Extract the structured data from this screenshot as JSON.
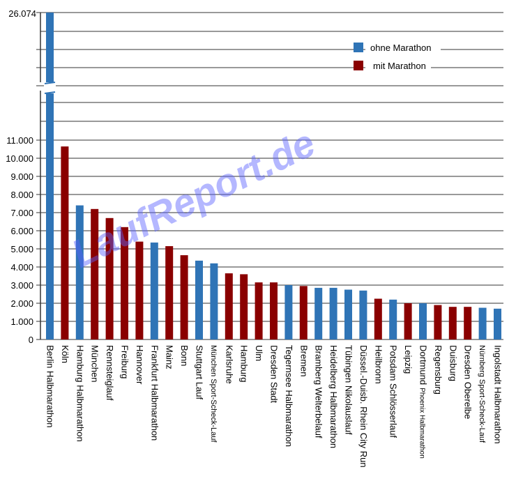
{
  "chart_data": {
    "type": "bar",
    "title": "",
    "xlabel": "",
    "ylabel": "",
    "ylim": [
      0,
      11500
    ],
    "axis_break": true,
    "yticks": [
      0,
      1000,
      2000,
      3000,
      4000,
      5000,
      6000,
      7000,
      8000,
      9000,
      10000,
      11000
    ],
    "ytick_labels": [
      "0",
      "1.000",
      "2.000",
      "3.000",
      "4.000",
      "5.000",
      "6.000",
      "7.000",
      "8.000",
      "9.000",
      "10.000",
      "11.000"
    ],
    "top_label": "26.074",
    "grid": true,
    "legend_position": "top-right",
    "legend": [
      {
        "key": "blue",
        "label": "ohne Marathon"
      },
      {
        "key": "red",
        "label": "mit Marathon"
      }
    ],
    "colors": {
      "blue": "#2f74b6",
      "red": "#8a0000"
    },
    "watermark": "LaufReport.de",
    "bars": [
      {
        "label": "Berlin Halbmarathon",
        "value": 26074,
        "series": "blue"
      },
      {
        "label": "Köln",
        "value": 10650,
        "series": "red"
      },
      {
        "label": "Hamburg Halbmarathon",
        "value": 7400,
        "series": "blue"
      },
      {
        "label": "München",
        "value": 7200,
        "series": "red"
      },
      {
        "label": "Rennsteiglauf",
        "value": 6700,
        "series": "red"
      },
      {
        "label": "Freiburg",
        "value": 6200,
        "series": "red"
      },
      {
        "label": "Hannover",
        "value": 5400,
        "series": "red"
      },
      {
        "label": "Frankfurt Halbmarathon",
        "value": 5350,
        "series": "blue"
      },
      {
        "label": "Mainz",
        "value": 5150,
        "series": "red"
      },
      {
        "label": "Bonn",
        "value": 4650,
        "series": "red"
      },
      {
        "label": "Stuttgart Lauf",
        "value": 4350,
        "series": "blue"
      },
      {
        "label": "München Sport-Scheck-Lauf",
        "value": 4200,
        "series": "blue",
        "small": true
      },
      {
        "label": "Karlsruhe",
        "value": 3650,
        "series": "red"
      },
      {
        "label": "Hamburg",
        "value": 3600,
        "series": "red"
      },
      {
        "label": "Ulm",
        "value": 3150,
        "series": "red"
      },
      {
        "label": "Dresden Stadt",
        "value": 3150,
        "series": "red"
      },
      {
        "label": "Tegernsee Halbmarathon",
        "value": 3000,
        "series": "blue"
      },
      {
        "label": "Bremen",
        "value": 2950,
        "series": "red"
      },
      {
        "label": "Bramberg Welterbelauf",
        "value": 2850,
        "series": "blue"
      },
      {
        "label": "Heidelberg Halbmarathon",
        "value": 2850,
        "series": "blue"
      },
      {
        "label": "Tübingen Nikolauslauf",
        "value": 2750,
        "series": "blue"
      },
      {
        "label": "Düssel.-Duisb. Rhein City Run",
        "value": 2700,
        "series": "blue"
      },
      {
        "label": "Heilbronn",
        "value": 2250,
        "series": "red"
      },
      {
        "label": "Potsdam Schlösserlauf",
        "value": 2200,
        "series": "blue"
      },
      {
        "label": "Leipzig",
        "value": 2000,
        "series": "red"
      },
      {
        "label": "Dortmund",
        "label_extra": "Phoenix Halbmarathon",
        "value": 2000,
        "series": "blue"
      },
      {
        "label": "Regensburg",
        "value": 1900,
        "series": "red"
      },
      {
        "label": "Duisburg",
        "value": 1800,
        "series": "red"
      },
      {
        "label": "Dresden Oberelbe",
        "value": 1800,
        "series": "red"
      },
      {
        "label": "Nürnberg Sport-Scheck-Lauf",
        "value": 1750,
        "series": "blue",
        "small": true
      },
      {
        "label": "Ingolstadt Halbmarathon",
        "value": 1700,
        "series": "blue"
      }
    ]
  }
}
